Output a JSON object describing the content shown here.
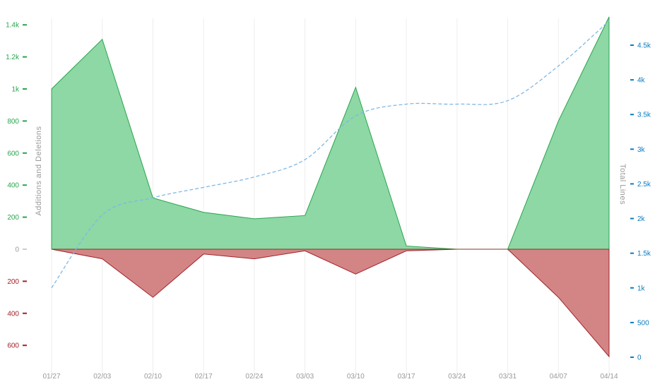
{
  "chart_data": {
    "type": "area",
    "categories": [
      "01/27",
      "02/03",
      "02/10",
      "02/17",
      "02/24",
      "03/03",
      "03/10",
      "03/17",
      "03/24",
      "03/31",
      "04/07",
      "04/14"
    ],
    "series": [
      {
        "values": [
          1000,
          1310,
          320,
          230,
          190,
          210,
          1010,
          20,
          0,
          0,
          800,
          1450
        ]
      },
      {
        "values": [
          0,
          60,
          300,
          30,
          60,
          10,
          155,
          10,
          0,
          0,
          300,
          670
        ]
      },
      {
        "values": [
          1000,
          2050,
          2300,
          2450,
          2600,
          2850,
          3480,
          3650,
          3650,
          3700,
          4200,
          4850
        ]
      }
    ],
    "y_left": {
      "label": "Additions and Deletions",
      "ticks": [
        1400,
        1200,
        1000,
        800,
        600,
        400,
        200,
        0,
        -200,
        -400,
        -600
      ],
      "tick_labels": [
        "1.4k",
        "1.2k",
        "1k",
        "800",
        "600",
        "400",
        "200",
        "0",
        "200",
        "400",
        "600"
      ],
      "range": [
        -690,
        1450
      ]
    },
    "y_right": {
      "label": "Total Lines",
      "ticks": [
        0,
        500,
        1000,
        1500,
        2000,
        2500,
        3000,
        3500,
        4000,
        4500
      ],
      "tick_labels": [
        "0",
        "500",
        "1k",
        "1.5k",
        "2k",
        "2.5k",
        "3k",
        "3.5k",
        "4k",
        "4.5k"
      ],
      "range": [
        0,
        4850
      ]
    },
    "grid": "vertical",
    "colors": {
      "additions_fill": "#8dd8a4",
      "additions_line": "#2aa44f",
      "deletions_fill": "#d38585",
      "deletions_line": "#a3212a",
      "total_line": "#7fb8e6",
      "left_tick_positive": "#2aa44f",
      "left_tick_negative": "#a3212a",
      "right_tick": "#0a7bbf",
      "x_tick": "#999999",
      "grid": "#eeeeee"
    }
  }
}
